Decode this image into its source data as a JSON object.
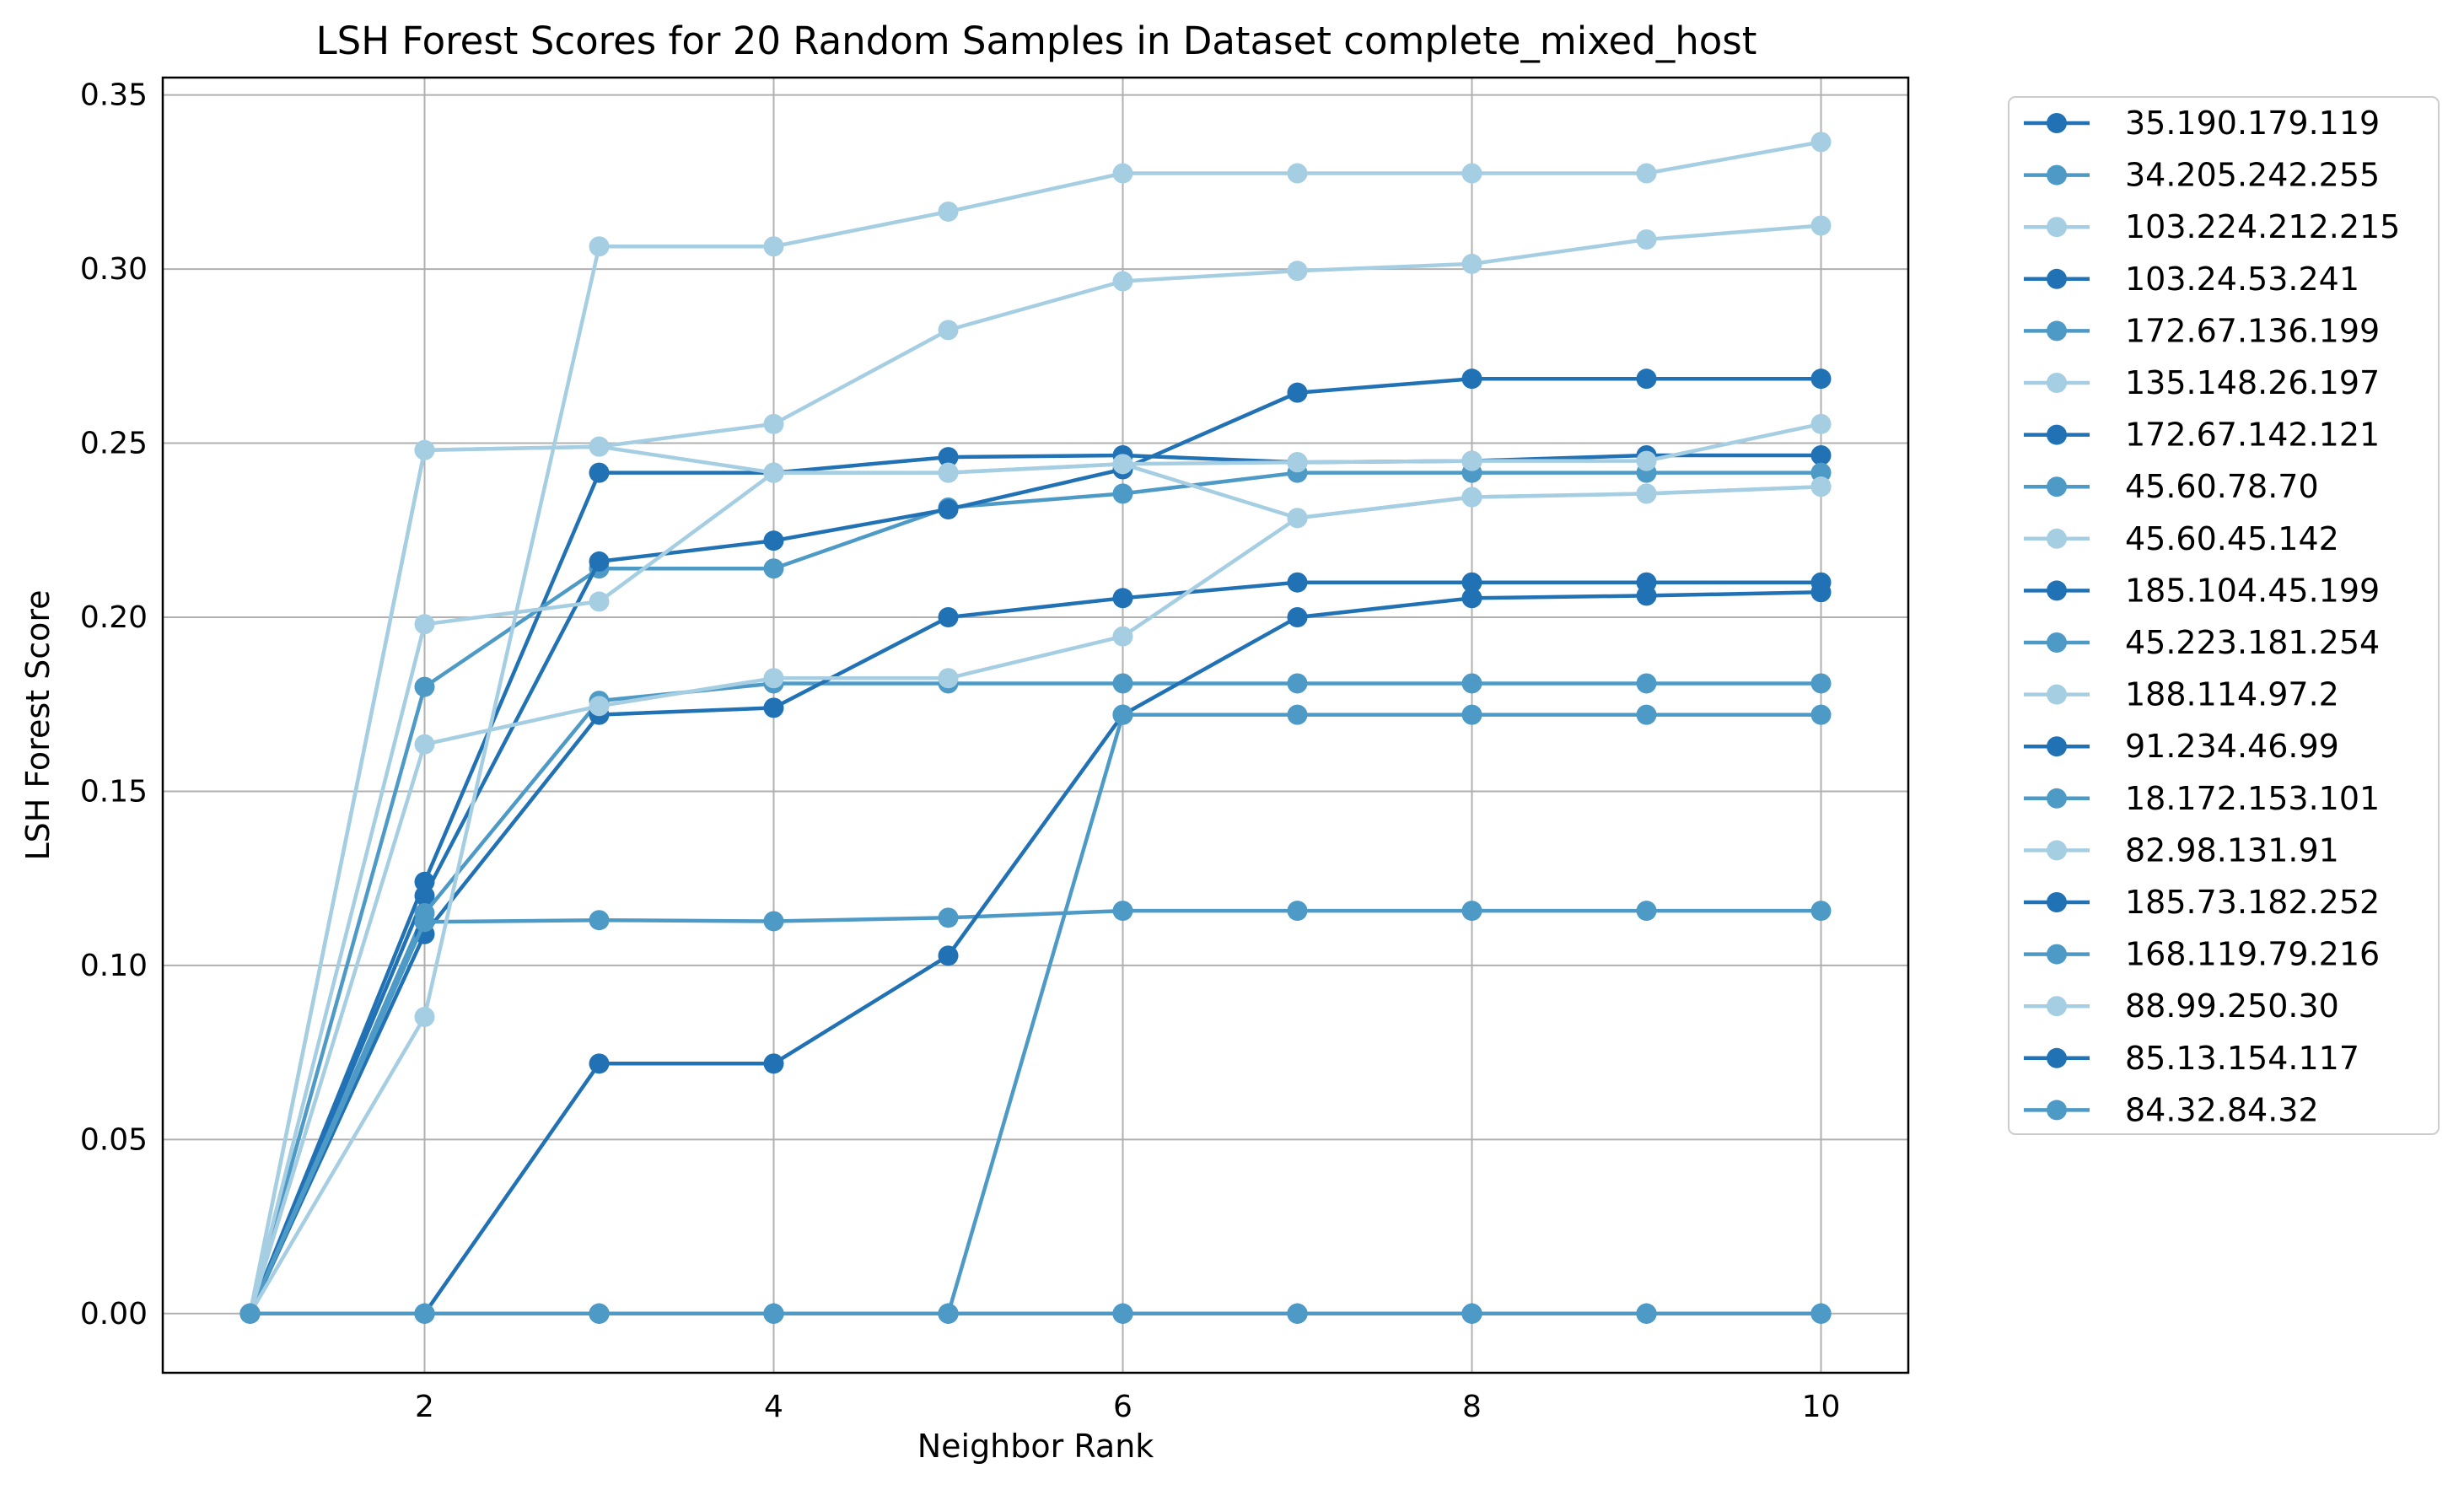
{
  "chart_data": {
    "type": "line",
    "title": "LSH Forest Scores for 20 Random Samples in Dataset complete_mixed_host",
    "xlabel": "Neighbor Rank",
    "ylabel": "LSH Forest Score",
    "xlim": [
      0.5,
      10.5
    ],
    "ylim": [
      -0.017,
      0.355
    ],
    "xticks": [
      2,
      4,
      6,
      8,
      10
    ],
    "yticks": [
      0.0,
      0.05,
      0.1,
      0.15,
      0.2,
      0.25,
      0.3,
      0.35
    ],
    "ytick_labels": [
      "0.00",
      "0.05",
      "0.10",
      "0.15",
      "0.20",
      "0.25",
      "0.30",
      "0.35"
    ],
    "grid": true,
    "legend_position": "outside-right",
    "colors": [
      "#2171b5",
      "#4e9ac7",
      "#a6cee3"
    ],
    "x": [
      1,
      2,
      3,
      4,
      5,
      6,
      7,
      8,
      9,
      10
    ],
    "series": [
      {
        "name": "35.190.179.119",
        "color": "#2171b5",
        "values": [
          0,
          0.124,
          0.2415,
          0.2415,
          0.246,
          0.2465,
          0.2445,
          0.2449,
          0.2465,
          0.2465
        ]
      },
      {
        "name": "34.205.242.255",
        "color": "#4e9ac7",
        "values": [
          0,
          0.18,
          0.214,
          0.214,
          0.2315,
          0.2355,
          0.2415,
          0.2415,
          0.2415,
          0.2415
        ]
      },
      {
        "name": "103.224.212.215",
        "color": "#a6cee3",
        "values": [
          0,
          0.248,
          0.249,
          0.2555,
          0.2825,
          0.2965,
          0.2995,
          0.3015,
          0.3085,
          0.3125
        ]
      },
      {
        "name": "103.24.53.241",
        "color": "#2171b5",
        "values": [
          0,
          0.12,
          0.216,
          0.222,
          0.231,
          0.2425,
          0.2645,
          0.2685,
          0.2685,
          0.2685
        ]
      },
      {
        "name": "172.67.136.199",
        "color": "#4e9ac7",
        "values": [
          0,
          0.115,
          0.176,
          0.181,
          0.181,
          0.181,
          0.181,
          0.181,
          0.181,
          0.181
        ]
      },
      {
        "name": "135.148.26.197",
        "color": "#a6cee3",
        "values": [
          0,
          0.248,
          0.249,
          0.2415,
          0.2415,
          0.244,
          0.2445,
          0.2449,
          0.2449,
          0.2555
        ]
      },
      {
        "name": "172.67.142.121",
        "color": "#2171b5",
        "values": [
          0,
          0.109,
          0.172,
          0.174,
          0.2,
          0.2055,
          0.21,
          0.21,
          0.21,
          0.21
        ]
      },
      {
        "name": "45.60.78.70",
        "color": "#4e9ac7",
        "values": [
          0,
          0.1125,
          0.113,
          0.1127,
          0.1137,
          0.1157,
          0.1157,
          0.1157,
          0.1157,
          0.1157
        ]
      },
      {
        "name": "45.60.45.142",
        "color": "#a6cee3",
        "values": [
          0,
          0.198,
          0.2045,
          0.2415,
          0.2415,
          0.244,
          0.2285,
          0.2345,
          0.2355,
          0.2375
        ]
      },
      {
        "name": "185.104.45.199",
        "color": "#2171b5",
        "values": [
          0,
          0,
          0.0718,
          0.0718,
          0.1028,
          0.172,
          0.2,
          0.2055,
          0.2062,
          0.2072
        ]
      },
      {
        "name": "45.223.181.254",
        "color": "#4e9ac7",
        "values": [
          0,
          0,
          0,
          0,
          0,
          0.172,
          0.172,
          0.172,
          0.172,
          0.172
        ]
      },
      {
        "name": "188.114.97.2",
        "color": "#a6cee3",
        "values": [
          0,
          0.1635,
          0.1745,
          0.1825,
          0.1825,
          0.1945,
          0.2285,
          0.2345,
          0.2355,
          0.2375
        ]
      },
      {
        "name": "91.234.46.99",
        "color": "#2171b5",
        "values": [
          0,
          0,
          0,
          0,
          0,
          0,
          0,
          0,
          0,
          0
        ]
      },
      {
        "name": "18.172.153.101",
        "color": "#4e9ac7",
        "values": [
          0,
          0,
          0,
          0,
          0,
          0,
          0,
          0,
          0,
          0
        ]
      },
      {
        "name": "82.98.131.91",
        "color": "#a6cee3",
        "values": [
          0,
          0.0852,
          0.3065,
          0.3065,
          0.3165,
          0.3275,
          0.3275,
          0.3275,
          0.3275,
          0.3365
        ]
      },
      {
        "name": "185.73.182.252",
        "color": "#2171b5",
        "values": [
          0,
          0,
          0,
          0,
          0,
          0,
          0,
          0,
          0,
          0
        ]
      },
      {
        "name": "168.119.79.216",
        "color": "#4e9ac7",
        "values": [
          0,
          0,
          0,
          0,
          0,
          0,
          0,
          0,
          0,
          0
        ]
      },
      {
        "name": "88.99.250.30",
        "color": "#a6cee3",
        "values": [
          0,
          0,
          0,
          0,
          0,
          0,
          0,
          0,
          0,
          0
        ]
      },
      {
        "name": "85.13.154.117",
        "color": "#2171b5",
        "values": [
          0,
          0,
          0,
          0,
          0,
          0,
          0,
          0,
          0,
          0
        ]
      },
      {
        "name": "84.32.84.32",
        "color": "#4e9ac7",
        "values": [
          0,
          0,
          0,
          0,
          0,
          0,
          0,
          0,
          0,
          0
        ]
      }
    ]
  }
}
